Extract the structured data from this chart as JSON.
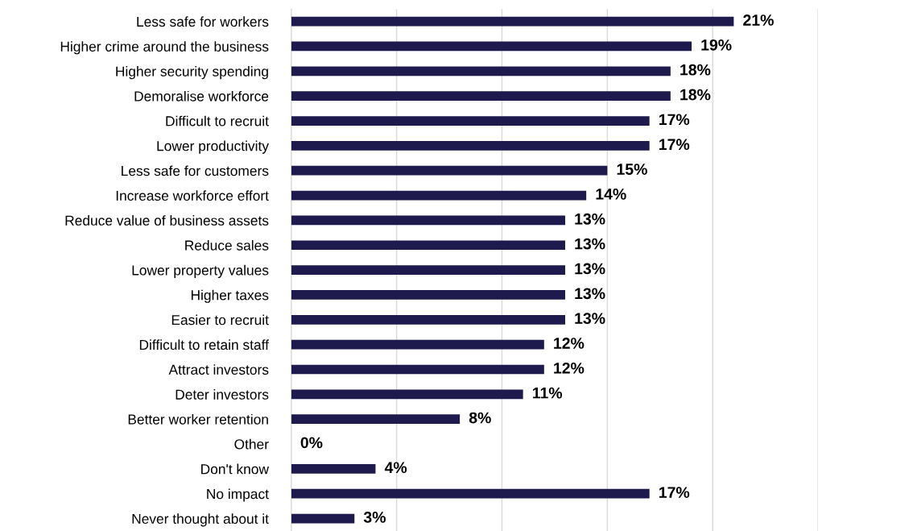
{
  "chart_data": {
    "type": "bar",
    "orientation": "horizontal",
    "categories": [
      "Less safe for workers",
      "Higher crime around the business",
      "Higher security spending",
      "Demoralise workforce",
      "Difficult to recruit",
      "Lower productivity",
      "Less safe for customers",
      "Increase workforce effort",
      "Reduce value of business assets",
      "Reduce sales",
      "Lower property values",
      "Higher taxes",
      "Easier to recruit",
      "Difficult to retain staff",
      "Attract investors",
      "Deter investors",
      "Better worker retention",
      "Other",
      "Don't know",
      "No impact",
      "Never thought about it"
    ],
    "values": [
      21,
      19,
      18,
      18,
      17,
      17,
      15,
      14,
      13,
      13,
      13,
      13,
      13,
      12,
      12,
      11,
      8,
      0,
      4,
      17,
      3
    ],
    "value_labels": [
      "21%",
      "19%",
      "18%",
      "18%",
      "17%",
      "17%",
      "15%",
      "14%",
      "13%",
      "13%",
      "13%",
      "13%",
      "13%",
      "12%",
      "12%",
      "11%",
      "8%",
      "0%",
      "4%",
      "17%",
      "3%"
    ],
    "color": "#1e1a4d",
    "xlim": [
      0,
      25
    ],
    "xticks": [
      {
        "value": 0,
        "label": null
      },
      {
        "value": 5,
        "label": null
      },
      {
        "value": 10,
        "label": null
      },
      {
        "value": 15,
        "label": null
      },
      {
        "value": 20,
        "label": null
      },
      {
        "value": 25,
        "label": null
      }
    ],
    "grid": "x",
    "tick_labels": "y",
    "legend": false
  }
}
